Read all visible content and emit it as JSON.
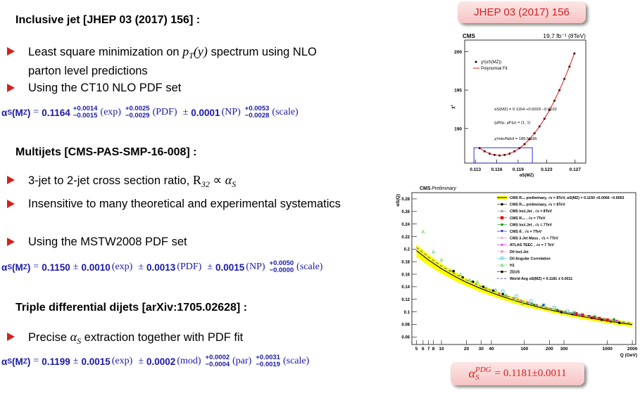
{
  "sections": [
    {
      "title": "Inclusive jet [JHEP 03 (2017) 156] :",
      "bullets": [
        [
          {
            "text": "Least square minimization on "
          },
          {
            "text": "p",
            "style": "math"
          },
          {
            "text": "T",
            "style": "sub"
          },
          {
            "text": "(y)",
            "style": "math"
          },
          {
            "text": " spectrum using NLO parton level predictions"
          }
        ],
        [
          {
            "text": "Using the CT10 NLO PDF set"
          }
        ]
      ],
      "result": {
        "symbol": "α",
        "symbol_sub": "S",
        "arg": "(M",
        "arg_sub": "Z",
        "close": ")",
        "eq": "=",
        "value": "0.1164",
        "terms": [
          {
            "up": "+0.0014",
            "down": "−0.0015",
            "label": "(exp)"
          },
          {
            "up": "+0.0025",
            "down": "−0.0029",
            "label": "(PDF)"
          },
          {
            "pm": "±",
            "num": "0.0001",
            "label": "(NP)"
          },
          {
            "up": "+0.0053",
            "down": "−0.0028",
            "label": "(scale)"
          }
        ]
      }
    },
    {
      "title": "Multijets [CMS-PAS-SMP-16-008] :",
      "bullets": [
        [
          {
            "text": "3-jet to 2-jet cross section ratio, "
          },
          {
            "text": "R",
            "style": "serif"
          },
          {
            "text": "32",
            "style": "sub"
          },
          {
            "text": " ∝ ",
            "style": "serif"
          },
          {
            "text": "α",
            "style": "math"
          },
          {
            "text": "S",
            "style": "sub"
          }
        ],
        [
          {
            "text": "Insensitive to many theoretical and experimental systematics"
          }
        ],
        [
          {
            "text": "Using the MSTW2008 PDF set"
          }
        ]
      ],
      "result": {
        "symbol": "α",
        "symbol_sub": "S",
        "arg": "(M",
        "arg_sub": "Z",
        "close": ")",
        "eq": "=",
        "value": "0.1150",
        "terms": [
          {
            "pm": "±",
            "num": "0.0010",
            "label": "(exp)"
          },
          {
            "pm": "±",
            "num": "0.0013",
            "label": "(PDF)"
          },
          {
            "pm": "±",
            "num": "0.0015",
            "label": "(NP)"
          },
          {
            "up": "+0.0050",
            "down": "−0.0000",
            "label": "(scale)"
          }
        ]
      }
    },
    {
      "title": "Triple differential dijets [arXiv:1705.02628] :",
      "bullets": [
        [
          {
            "text": "Precise "
          },
          {
            "text": "α",
            "style": "math"
          },
          {
            "text": "S",
            "style": "sub"
          },
          {
            "text": " extraction together with PDF fit"
          }
        ]
      ],
      "result": {
        "symbol": "α",
        "symbol_sub": "S",
        "arg": "(M",
        "arg_sub": "Z",
        "close": ")",
        "eq": "=",
        "value": "0.1199",
        "terms": [
          {
            "pm": "±",
            "num": "0.0015",
            "label": "(exp)"
          },
          {
            "pm": "±",
            "num": "0.0002",
            "label": "(mod)"
          },
          {
            "up": "+0.0002",
            "down": "−0.0004",
            "label": "(par)"
          },
          {
            "up": "+0.0031",
            "down": "−0.0019",
            "label": "(scale)"
          }
        ]
      }
    }
  ],
  "reference_box": "JHEP 03 (2017) 156",
  "pdg_box": {
    "symbol": "α",
    "sub": "S",
    "sup": "PDG",
    "text": "= 0.1181±0.0011"
  },
  "chart_data": [
    {
      "type": "line",
      "header_left": "CMS",
      "header_right": "19.7 fb⁻¹ (8TeV)",
      "xlabel": "αS(MZ)",
      "ylabel": "χ²",
      "x": [
        0.1136,
        0.1143,
        0.115,
        0.1157,
        0.1164,
        0.1171,
        0.1178,
        0.1185,
        0.1192,
        0.1199,
        0.1206,
        0.1213,
        0.122,
        0.1227,
        0.1234,
        0.1241,
        0.1248,
        0.1255,
        0.1262,
        0.1269
      ],
      "series": [
        {
          "name": "χ²(αS(MZ))",
          "color": "#000000",
          "style": "marker",
          "values": [
            187.44,
            187.03,
            186.74,
            186.56,
            186.5,
            186.56,
            186.74,
            187.03,
            187.44,
            187.97,
            188.62,
            189.38,
            190.27,
            191.27,
            192.39,
            193.62,
            194.98,
            196.45,
            198.04,
            199.75
          ]
        },
        {
          "name": "Polynomial Fit",
          "color": "#e00000",
          "style": "line",
          "values": [
            187.44,
            187.03,
            186.74,
            186.56,
            186.5,
            186.56,
            186.74,
            187.03,
            187.44,
            187.97,
            188.62,
            189.38,
            190.27,
            191.27,
            192.39,
            193.62,
            194.98,
            196.45,
            198.04,
            199.75
          ]
        }
      ],
      "annotations": [
        "αS(MZ) = 0.1164 +0.0029 −0.0032",
        "(μR/μ, μF/μ) = (1, 1)",
        "χ²min/Ndof = 186.5/185"
      ],
      "window": {
        "x": [
          0.1128,
          0.121
        ],
        "y": 187.5,
        "color": "#1020c0"
      },
      "xlim": [
        0.1115,
        0.1285
      ],
      "ylim": [
        185.5,
        201.5
      ],
      "xticks": [
        0.113,
        0.116,
        0.119,
        0.123,
        0.127
      ],
      "yticks": [
        190,
        195,
        200
      ]
    },
    {
      "type": "line",
      "title_bold": "CMS",
      "title_italic": "Preliminary",
      "xlabel": "Q (GeV)",
      "ylabel": "αS(Q)",
      "log_x": true,
      "xlim": [
        4.4,
        2200
      ],
      "ylim": [
        0.048,
        0.29
      ],
      "xticks": [
        5,
        6,
        7,
        8,
        10,
        20,
        30,
        40,
        100,
        200,
        300,
        1000,
        2000
      ],
      "yticks": [
        0.06,
        0.08,
        0.1,
        0.12,
        0.14,
        0.16,
        0.18,
        0.2,
        0.22,
        0.24,
        0.26,
        0.28
      ],
      "series": [
        {
          "name": "CMS R₃₂ preliminary, √s = 8TeV, αS(MZ) = 0.1150 +0.0066 −0.0063",
          "color": "#000000",
          "band_color": "#ffff00",
          "style": "band",
          "x": [
            5,
            7,
            10,
            15,
            20,
            30,
            50,
            70,
            100,
            150,
            200,
            300,
            500,
            700,
            1000,
            1500,
            2000
          ],
          "values": [
            0.1976,
            0.1825,
            0.1687,
            0.1554,
            0.1472,
            0.137,
            0.126,
            0.1196,
            0.1136,
            0.1073,
            0.1034,
            0.0982,
            0.0924,
            0.0889,
            0.0855,
            0.082,
            0.0797
          ],
          "band": [
            0.01,
            0.009,
            0.008,
            0.007,
            0.006,
            0.006,
            0.005,
            0.005,
            0.005,
            0.004,
            0.004,
            0.004,
            0.004,
            0.004,
            0.004,
            0.004,
            0.004
          ]
        },
        {
          "name": "CMS R₃₂ preliminary, √s = 8TeV",
          "color": "#000000",
          "style": "marker",
          "marker": "circle",
          "x": [
            280,
            380,
            500,
            650,
            850,
            1100,
            1400
          ],
          "values": [
            0.0995,
            0.0965,
            0.094,
            0.0905,
            0.0875,
            0.085,
            0.0825
          ]
        },
        {
          "name": "CMS Incl.Jet , √s = 8TeV",
          "color": "#909090",
          "style": "marker",
          "marker": "x",
          "x": [
            120,
            200,
            300,
            450,
            600,
            800,
            1100
          ],
          "values": [
            0.1125,
            0.1045,
            0.1,
            0.0955,
            0.092,
            0.089,
            0.086
          ]
        },
        {
          "name": "CMS R₃₂ , √s = 7TeV",
          "color": "#e00000",
          "style": "marker",
          "marker": "square",
          "x": [
            420,
            500,
            600,
            700,
            800,
            1000
          ],
          "values": [
            0.097,
            0.095,
            0.0925,
            0.091,
            0.0895,
            0.087
          ]
        },
        {
          "name": "CMS Incl.Jet , √s = 7TeV",
          "color": "#00a000",
          "style": "marker",
          "marker": "circle",
          "x": [
            130,
            250,
            400,
            700,
            1200
          ],
          "values": [
            0.111,
            0.103,
            0.098,
            0.0925,
            0.088
          ]
        },
        {
          "name": "CMS tt̄ , √s = 7TeV",
          "color": "#0000c0",
          "style": "marker",
          "marker": "triangle-down",
          "x": [
            170
          ],
          "values": [
            0.11
          ]
        },
        {
          "name": "CMS 3-Jet Mass , √s = 7TeV",
          "color": "#c080c0",
          "style": "marker",
          "marker": "cross",
          "x": [
            380,
            480,
            600,
            750,
            950,
            1250
          ],
          "values": [
            0.098,
            0.095,
            0.092,
            0.0905,
            0.088,
            0.085
          ]
        },
        {
          "name": "ATLAS TEEC , √s = 7 TeV",
          "color": "#e000e0",
          "style": "marker",
          "marker": "star",
          "x": [
            260,
            320,
            400,
            500,
            650,
            900,
            1300
          ],
          "values": [
            0.1015,
            0.099,
            0.0965,
            0.0945,
            0.0915,
            0.0885,
            0.086
          ]
        },
        {
          "name": "D0 Incl.Jet",
          "color": "#ff80c0",
          "style": "marker",
          "marker": "circle",
          "x": [
            50,
            60,
            75,
            90,
            110,
            140
          ],
          "values": [
            0.129,
            0.1255,
            0.1215,
            0.118,
            0.115,
            0.111
          ]
        },
        {
          "name": "D0 Angular Correlation",
          "color": "#40c0e0",
          "style": "marker",
          "marker": "open-square",
          "x": [
            55,
            80,
            120,
            170,
            230,
            330,
            400
          ],
          "values": [
            0.133,
            0.125,
            0.117,
            0.111,
            0.107,
            0.101,
            0.099
          ]
        },
        {
          "name": "H1",
          "color": "#60d060",
          "style": "marker",
          "marker": "open-triangle",
          "x": [
            6,
            8,
            10,
            13,
            17,
            22,
            27,
            35,
            45,
            60,
            75,
            95
          ],
          "values": [
            0.228,
            0.196,
            0.183,
            0.166,
            0.16,
            0.151,
            0.148,
            0.138,
            0.135,
            0.127,
            0.12,
            0.113
          ]
        },
        {
          "name": "ZEUS",
          "color": "#000000",
          "style": "marker",
          "marker": "circle",
          "x": [
            14,
            18,
            24,
            32,
            42,
            55
          ],
          "values": [
            0.165,
            0.155,
            0.148,
            0.14,
            0.134,
            0.128
          ]
        },
        {
          "name": "World Avg αS(MZ) = 0.1181 ± 0.0011",
          "color": "#6060c0",
          "style": "dashed",
          "x": [
            5,
            7,
            10,
            15,
            20,
            30,
            50,
            70,
            100,
            150,
            200,
            300,
            500,
            700,
            1000,
            1500,
            2000
          ],
          "values": [
            0.2027,
            0.1872,
            0.173,
            0.1594,
            0.151,
            0.1405,
            0.1292,
            0.1227,
            0.1165,
            0.1101,
            0.106,
            0.1007,
            0.0948,
            0.0912,
            0.0877,
            0.0841,
            0.0817
          ]
        }
      ]
    }
  ]
}
